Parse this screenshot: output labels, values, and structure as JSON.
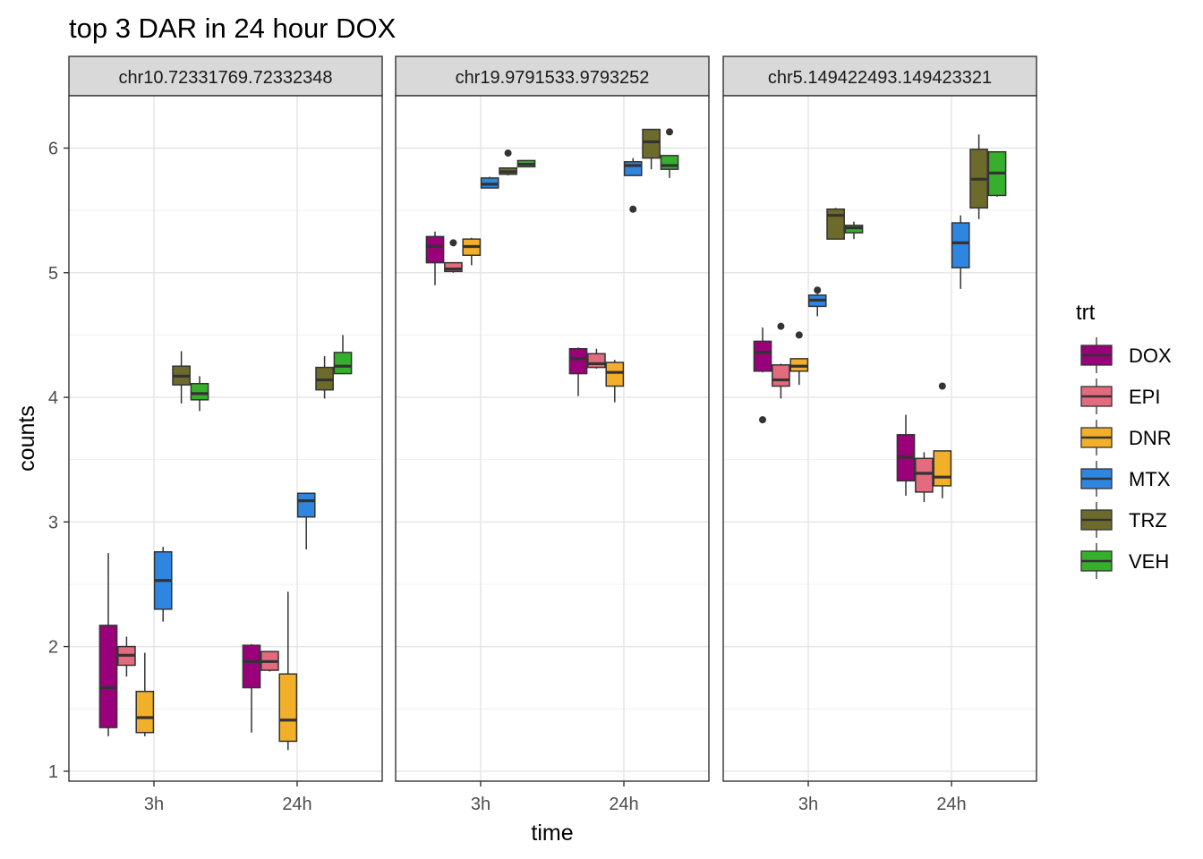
{
  "chart_data": {
    "type": "box",
    "title": "top 3 DAR in 24 hour DOX",
    "xlabel": "time",
    "ylabel": "counts",
    "ylim": [
      0.92,
      6.42
    ],
    "yticks": [
      1,
      2,
      3,
      4,
      5,
      6
    ],
    "categories": [
      "3h",
      "24h"
    ],
    "grid": true,
    "legend": {
      "title": "trt",
      "position": "right",
      "entries": [
        "DOX",
        "EPI",
        "DNR",
        "MTX",
        "TRZ",
        "VEH"
      ]
    },
    "colors": {
      "DOX": "#99007a",
      "EPI": "#e36b7d",
      "DNR": "#f2b02a",
      "MTX": "#2f86e0",
      "TRZ": "#6d6b2c",
      "VEH": "#36b02c"
    },
    "panels": [
      {
        "name": "chr10.72331769.72332348",
        "boxes": [
          {
            "time": "3h",
            "trt": "DOX",
            "min": 1.28,
            "q1": 1.35,
            "median": 1.67,
            "q3": 2.17,
            "max": 2.75,
            "outliers": []
          },
          {
            "time": "3h",
            "trt": "EPI",
            "min": 1.76,
            "q1": 1.85,
            "median": 1.93,
            "q3": 2.0,
            "max": 2.08,
            "outliers": []
          },
          {
            "time": "3h",
            "trt": "DNR",
            "min": 1.28,
            "q1": 1.31,
            "median": 1.43,
            "q3": 1.64,
            "max": 1.95,
            "outliers": []
          },
          {
            "time": "3h",
            "trt": "MTX",
            "min": 2.2,
            "q1": 2.3,
            "median": 2.53,
            "q3": 2.76,
            "max": 2.8,
            "outliers": []
          },
          {
            "time": "3h",
            "trt": "TRZ",
            "min": 3.95,
            "q1": 4.1,
            "median": 4.17,
            "q3": 4.25,
            "max": 4.37,
            "outliers": []
          },
          {
            "time": "3h",
            "trt": "VEH",
            "min": 3.89,
            "q1": 3.98,
            "median": 4.03,
            "q3": 4.11,
            "max": 4.17,
            "outliers": []
          },
          {
            "time": "24h",
            "trt": "DOX",
            "min": 1.31,
            "q1": 1.67,
            "median": 1.88,
            "q3": 2.01,
            "max": 2.02,
            "outliers": []
          },
          {
            "time": "24h",
            "trt": "EPI",
            "min": 1.8,
            "q1": 1.81,
            "median": 1.88,
            "q3": 1.96,
            "max": 1.96,
            "outliers": []
          },
          {
            "time": "24h",
            "trt": "DNR",
            "min": 1.17,
            "q1": 1.24,
            "median": 1.41,
            "q3": 1.78,
            "max": 2.44,
            "outliers": []
          },
          {
            "time": "24h",
            "trt": "MTX",
            "min": 2.78,
            "q1": 3.04,
            "median": 3.17,
            "q3": 3.23,
            "max": 3.23,
            "outliers": []
          },
          {
            "time": "24h",
            "trt": "TRZ",
            "min": 3.99,
            "q1": 4.06,
            "median": 4.14,
            "q3": 4.24,
            "max": 4.33,
            "outliers": []
          },
          {
            "time": "24h",
            "trt": "VEH",
            "min": 4.19,
            "q1": 4.19,
            "median": 4.25,
            "q3": 4.36,
            "max": 4.5,
            "outliers": []
          }
        ]
      },
      {
        "name": "chr19.9791533.9793252",
        "boxes": [
          {
            "time": "3h",
            "trt": "DOX",
            "min": 4.9,
            "q1": 5.08,
            "median": 5.21,
            "q3": 5.29,
            "max": 5.33,
            "outliers": []
          },
          {
            "time": "3h",
            "trt": "EPI",
            "min": 5.0,
            "q1": 5.01,
            "median": 5.03,
            "q3": 5.08,
            "max": 5.08,
            "outliers": [
              5.24
            ]
          },
          {
            "time": "3h",
            "trt": "DNR",
            "min": 5.06,
            "q1": 5.14,
            "median": 5.21,
            "q3": 5.27,
            "max": 5.28,
            "outliers": []
          },
          {
            "time": "3h",
            "trt": "MTX",
            "min": 5.68,
            "q1": 5.68,
            "median": 5.71,
            "q3": 5.76,
            "max": 5.77,
            "outliers": []
          },
          {
            "time": "3h",
            "trt": "TRZ",
            "min": 5.78,
            "q1": 5.79,
            "median": 5.81,
            "q3": 5.84,
            "max": 5.84,
            "outliers": [
              5.96
            ]
          },
          {
            "time": "3h",
            "trt": "VEH",
            "min": 5.85,
            "q1": 5.85,
            "median": 5.87,
            "q3": 5.9,
            "max": 5.9,
            "outliers": []
          },
          {
            "time": "24h",
            "trt": "DOX",
            "min": 4.01,
            "q1": 4.19,
            "median": 4.31,
            "q3": 4.39,
            "max": 4.4,
            "outliers": []
          },
          {
            "time": "24h",
            "trt": "EPI",
            "min": 4.23,
            "q1": 4.24,
            "median": 4.27,
            "q3": 4.35,
            "max": 4.39,
            "outliers": []
          },
          {
            "time": "24h",
            "trt": "DNR",
            "min": 3.96,
            "q1": 4.09,
            "median": 4.2,
            "q3": 4.28,
            "max": 4.3,
            "outliers": []
          },
          {
            "time": "24h",
            "trt": "MTX",
            "min": 5.78,
            "q1": 5.78,
            "median": 5.86,
            "q3": 5.89,
            "max": 5.92,
            "outliers": [
              5.51
            ]
          },
          {
            "time": "24h",
            "trt": "TRZ",
            "min": 5.83,
            "q1": 5.92,
            "median": 6.05,
            "q3": 6.15,
            "max": 6.15,
            "outliers": []
          },
          {
            "time": "24h",
            "trt": "VEH",
            "min": 5.76,
            "q1": 5.83,
            "median": 5.86,
            "q3": 5.94,
            "max": 5.94,
            "outliers": [
              6.13
            ]
          }
        ]
      },
      {
        "name": "chr5.149422493.149423321",
        "boxes": [
          {
            "time": "3h",
            "trt": "DOX",
            "min": 4.2,
            "q1": 4.21,
            "median": 4.36,
            "q3": 4.45,
            "max": 4.56,
            "outliers": [
              3.82
            ]
          },
          {
            "time": "3h",
            "trt": "EPI",
            "min": 3.99,
            "q1": 4.09,
            "median": 4.14,
            "q3": 4.26,
            "max": 4.27,
            "outliers": [
              4.57
            ]
          },
          {
            "time": "3h",
            "trt": "DNR",
            "min": 4.1,
            "q1": 4.21,
            "median": 4.25,
            "q3": 4.31,
            "max": 4.31,
            "outliers": [
              4.5
            ]
          },
          {
            "time": "3h",
            "trt": "MTX",
            "min": 4.65,
            "q1": 4.73,
            "median": 4.78,
            "q3": 4.82,
            "max": 4.83,
            "outliers": [
              4.86
            ]
          },
          {
            "time": "3h",
            "trt": "TRZ",
            "min": 5.27,
            "q1": 5.27,
            "median": 5.46,
            "q3": 5.51,
            "max": 5.52,
            "outliers": []
          },
          {
            "time": "3h",
            "trt": "VEH",
            "min": 5.27,
            "q1": 5.32,
            "median": 5.36,
            "q3": 5.38,
            "max": 5.41,
            "outliers": []
          },
          {
            "time": "24h",
            "trt": "DOX",
            "min": 3.21,
            "q1": 3.33,
            "median": 3.52,
            "q3": 3.7,
            "max": 3.86,
            "outliers": []
          },
          {
            "time": "24h",
            "trt": "EPI",
            "min": 3.16,
            "q1": 3.24,
            "median": 3.39,
            "q3": 3.51,
            "max": 3.56,
            "outliers": []
          },
          {
            "time": "24h",
            "trt": "DNR",
            "min": 3.19,
            "q1": 3.29,
            "median": 3.36,
            "q3": 3.57,
            "max": 3.57,
            "outliers": [
              4.09
            ]
          },
          {
            "time": "24h",
            "trt": "MTX",
            "min": 4.87,
            "q1": 5.04,
            "median": 5.24,
            "q3": 5.4,
            "max": 5.46,
            "outliers": []
          },
          {
            "time": "24h",
            "trt": "TRZ",
            "min": 5.43,
            "q1": 5.52,
            "median": 5.75,
            "q3": 5.99,
            "max": 6.11,
            "outliers": []
          },
          {
            "time": "24h",
            "trt": "VEH",
            "min": 5.61,
            "q1": 5.62,
            "median": 5.8,
            "q3": 5.97,
            "max": 5.97,
            "outliers": []
          }
        ]
      }
    ]
  }
}
